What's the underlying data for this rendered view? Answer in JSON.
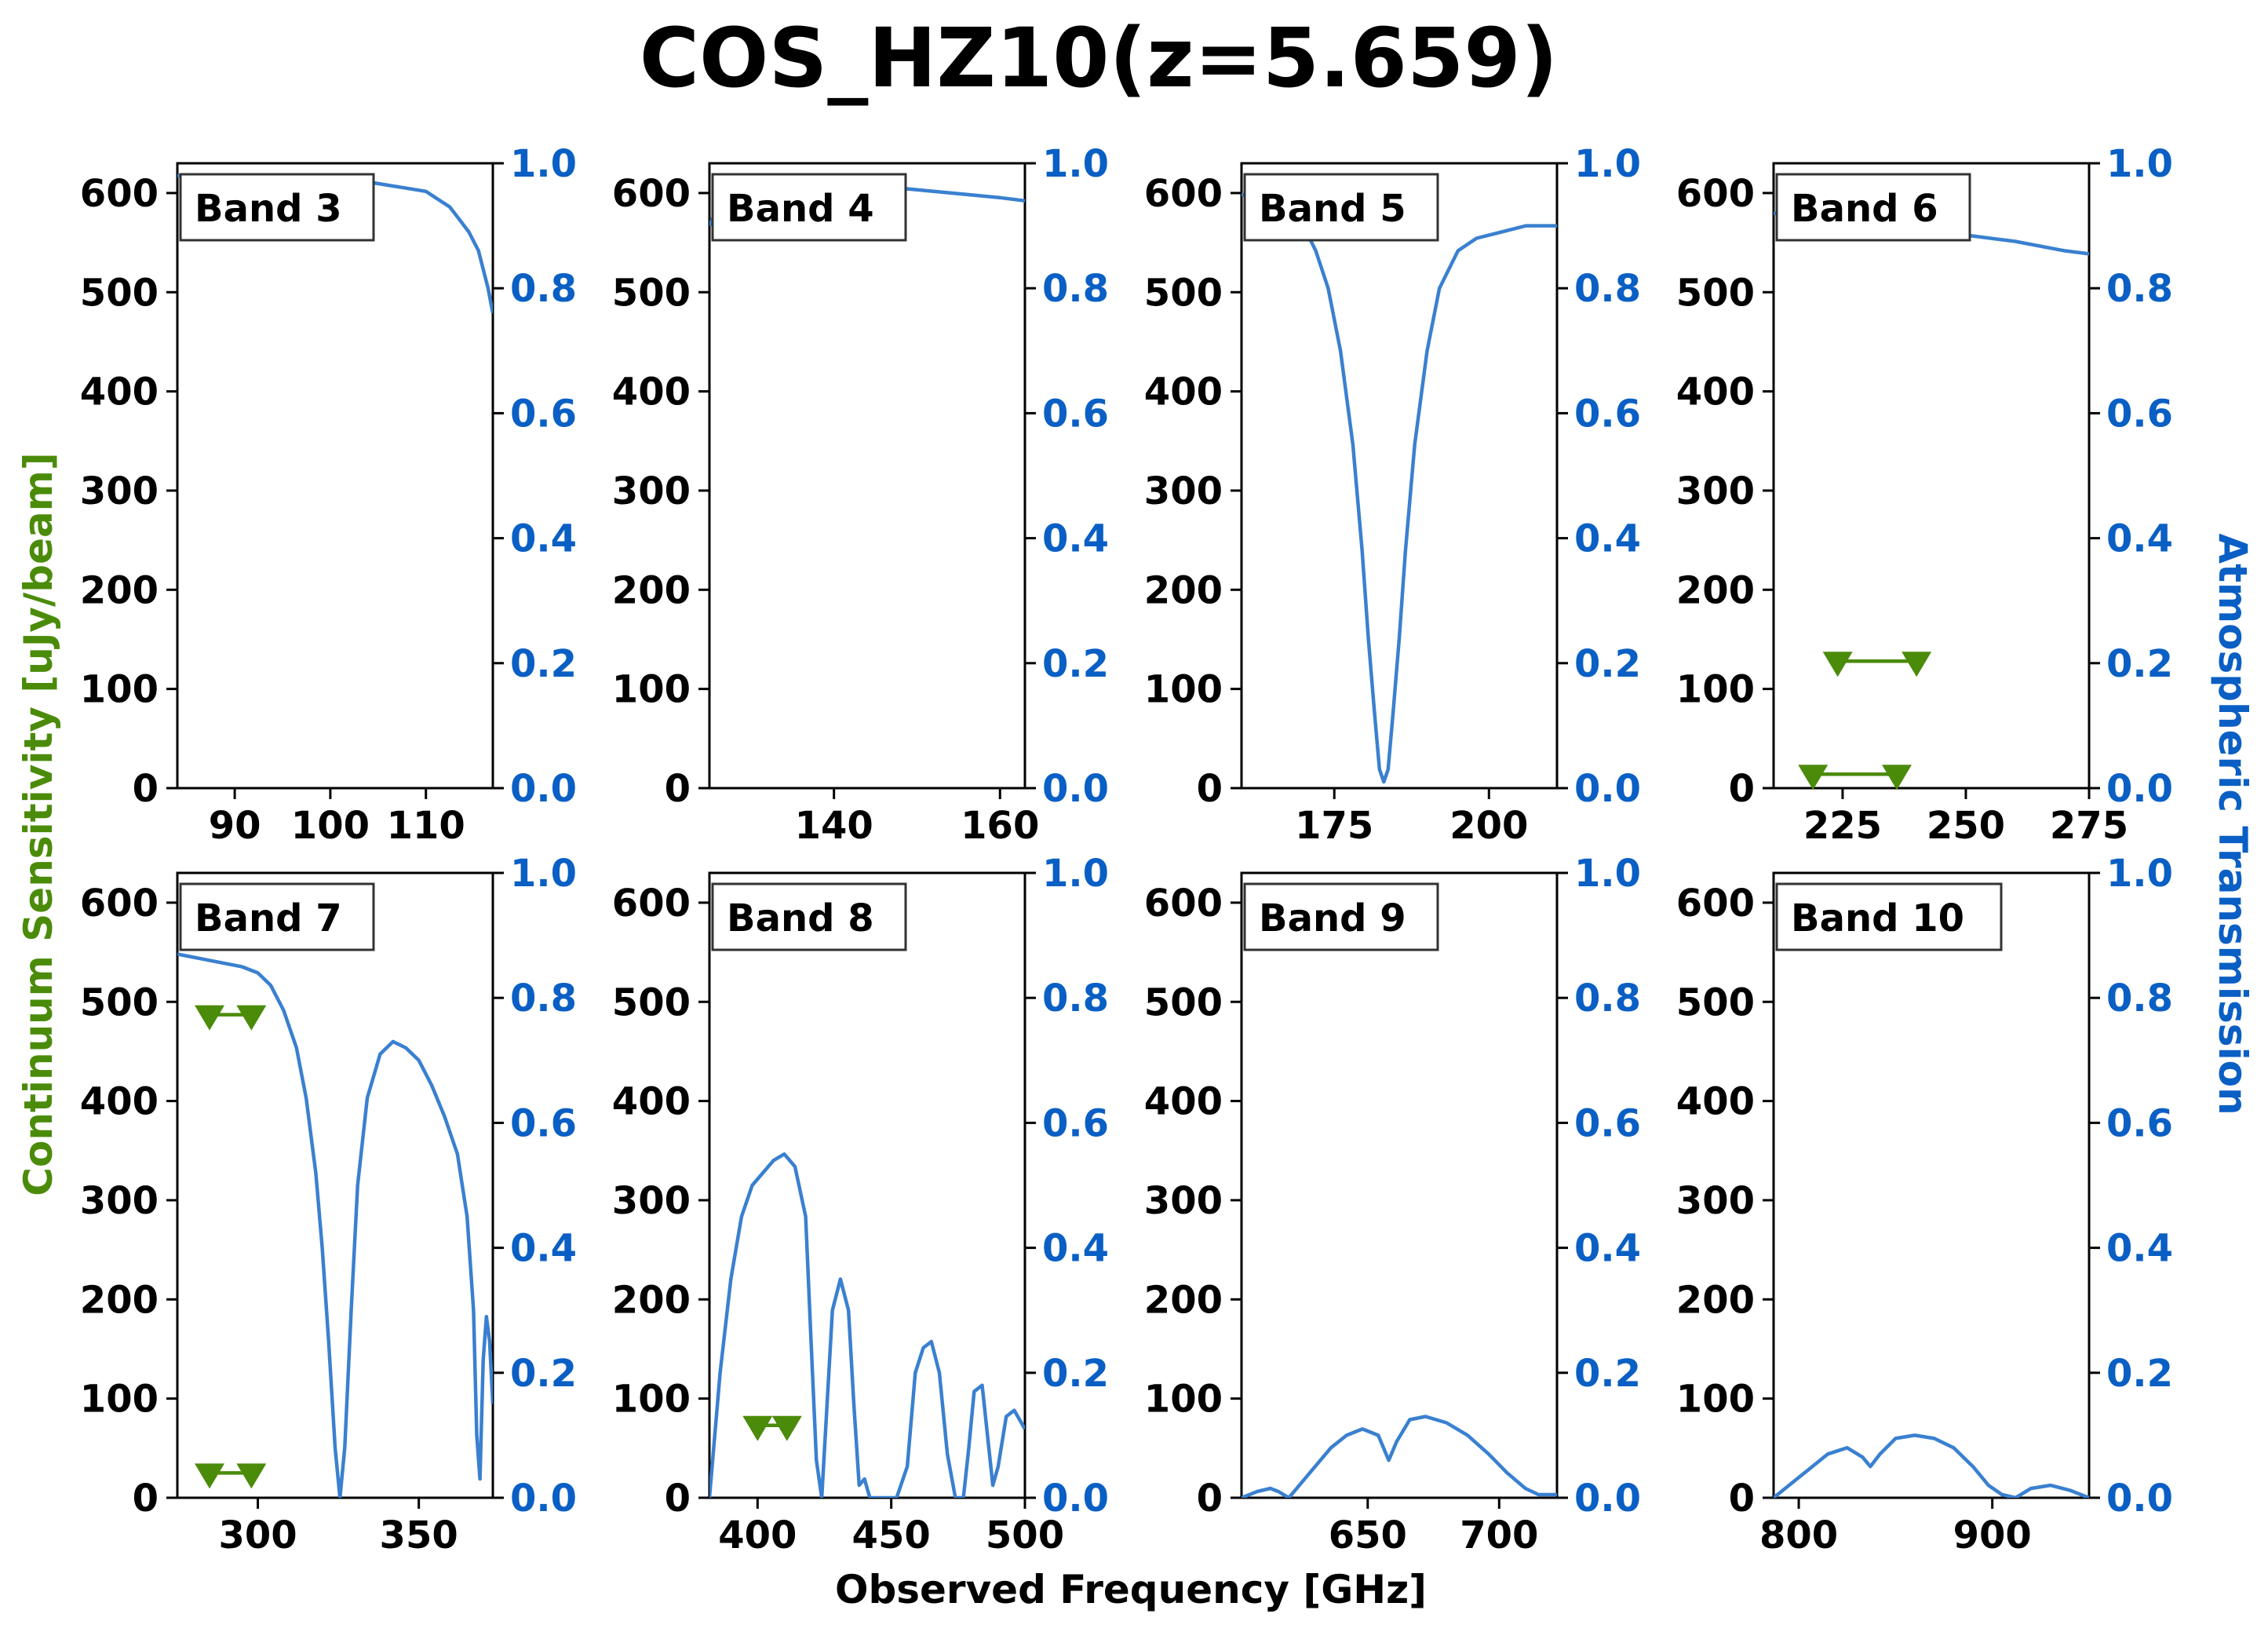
{
  "chart_data": {
    "type": "line",
    "title": "COS_HZ10(z=5.659)",
    "xlabel": "Observed Frequency [GHz]",
    "ylabel_left": "Continuum Sensitivity [uJy/beam]",
    "ylabel_right": "Atmospheric Transmission",
    "left_ylim": [
      0,
      630
    ],
    "left_yticks": [
      0,
      100,
      200,
      300,
      400,
      500,
      600
    ],
    "right_ylim": [
      0,
      1.0
    ],
    "right_yticks": [
      "0.0",
      "0.2",
      "0.4",
      "0.6",
      "0.8",
      "1.0"
    ],
    "colors": {
      "transmission": "#3a80d0",
      "sensitivity": "#4b8b0a",
      "right_axis": "#0a5fc4"
    },
    "panels": [
      {
        "label": "Band 3",
        "xlim": [
          84,
          117
        ],
        "xticks": [
          90,
          100,
          110
        ],
        "transmission": [
          [
            84,
            0.98
          ],
          [
            90,
            0.98
          ],
          [
            96,
            0.975
          ],
          [
            100,
            0.975
          ],
          [
            104,
            0.97
          ],
          [
            106,
            0.965
          ],
          [
            108,
            0.96
          ],
          [
            110,
            0.955
          ],
          [
            111.5,
            0.94
          ],
          [
            112.5,
            0.93
          ],
          [
            113.5,
            0.91
          ],
          [
            114.5,
            0.89
          ],
          [
            115.5,
            0.86
          ],
          [
            116.5,
            0.8
          ],
          [
            117,
            0.76
          ]
        ],
        "sensitivity_limits": []
      },
      {
        "label": "Band 4",
        "xlim": [
          125,
          163
        ],
        "xticks": [
          140,
          160
        ],
        "transmission": [
          [
            125,
            0.9
          ],
          [
            126,
            0.93
          ],
          [
            128,
            0.95
          ],
          [
            132,
            0.96
          ],
          [
            136,
            0.96
          ],
          [
            140,
            0.96
          ],
          [
            144,
            0.965
          ],
          [
            148,
            0.96
          ],
          [
            152,
            0.955
          ],
          [
            156,
            0.95
          ],
          [
            160,
            0.945
          ],
          [
            163,
            0.94
          ]
        ],
        "sensitivity_limits": []
      },
      {
        "label": "Band 5",
        "xlim": [
          160,
          211
        ],
        "xticks": [
          175,
          200
        ],
        "transmission": [
          [
            160,
            0.95
          ],
          [
            164,
            0.94
          ],
          [
            167,
            0.93
          ],
          [
            170,
            0.9
          ],
          [
            172,
            0.86
          ],
          [
            174,
            0.8
          ],
          [
            176,
            0.7
          ],
          [
            178,
            0.55
          ],
          [
            179.5,
            0.38
          ],
          [
            180.5,
            0.24
          ],
          [
            181.5,
            0.12
          ],
          [
            182.3,
            0.03
          ],
          [
            183,
            0.01
          ],
          [
            183.7,
            0.03
          ],
          [
            184.5,
            0.12
          ],
          [
            185.5,
            0.24
          ],
          [
            186.5,
            0.38
          ],
          [
            188,
            0.55
          ],
          [
            190,
            0.7
          ],
          [
            192,
            0.8
          ],
          [
            195,
            0.86
          ],
          [
            198,
            0.88
          ],
          [
            202,
            0.89
          ],
          [
            206,
            0.9
          ],
          [
            211,
            0.9
          ]
        ],
        "sensitivity_limits": []
      },
      {
        "label": "Band 6",
        "xlim": [
          211,
          275
        ],
        "xticks": [
          225,
          250,
          275
        ],
        "transmission": [
          [
            211,
            0.92
          ],
          [
            220,
            0.915
          ],
          [
            230,
            0.905
          ],
          [
            240,
            0.895
          ],
          [
            250,
            0.885
          ],
          [
            260,
            0.875
          ],
          [
            270,
            0.86
          ],
          [
            275,
            0.855
          ]
        ],
        "sensitivity_limits": [
          {
            "x": [
              224,
              240
            ],
            "y": 128
          },
          {
            "x": [
              219,
              236
            ],
            "y": 14
          }
        ]
      },
      {
        "label": "Band 7",
        "xlim": [
          275,
          373
        ],
        "xticks": [
          300,
          350
        ],
        "transmission": [
          [
            275,
            0.87
          ],
          [
            285,
            0.86
          ],
          [
            295,
            0.85
          ],
          [
            300,
            0.84
          ],
          [
            304,
            0.82
          ],
          [
            308,
            0.78
          ],
          [
            312,
            0.72
          ],
          [
            315,
            0.64
          ],
          [
            318,
            0.52
          ],
          [
            320,
            0.4
          ],
          [
            322,
            0.25
          ],
          [
            324,
            0.08
          ],
          [
            325.5,
            0.0
          ],
          [
            327,
            0.08
          ],
          [
            329,
            0.3
          ],
          [
            331,
            0.5
          ],
          [
            334,
            0.64
          ],
          [
            338,
            0.71
          ],
          [
            342,
            0.73
          ],
          [
            346,
            0.72
          ],
          [
            350,
            0.7
          ],
          [
            354,
            0.66
          ],
          [
            358,
            0.61
          ],
          [
            362,
            0.55
          ],
          [
            365,
            0.45
          ],
          [
            367,
            0.3
          ],
          [
            368,
            0.1
          ],
          [
            369,
            0.03
          ],
          [
            370,
            0.22
          ],
          [
            371,
            0.29
          ],
          [
            372,
            0.25
          ],
          [
            373,
            0.15
          ]
        ],
        "sensitivity_limits": [
          {
            "x": [
              285,
              298
            ],
            "y": 487
          },
          {
            "x": [
              285,
              298
            ],
            "y": 25
          }
        ]
      },
      {
        "label": "Band 8",
        "xlim": [
          382,
          500
        ],
        "xticks": [
          400,
          450,
          500
        ],
        "transmission": [
          [
            382,
            0.0
          ],
          [
            386,
            0.2
          ],
          [
            390,
            0.35
          ],
          [
            394,
            0.45
          ],
          [
            398,
            0.5
          ],
          [
            402,
            0.52
          ],
          [
            406,
            0.54
          ],
          [
            410,
            0.55
          ],
          [
            414,
            0.53
          ],
          [
            418,
            0.45
          ],
          [
            420,
            0.25
          ],
          [
            422,
            0.06
          ],
          [
            424,
            0.0
          ],
          [
            426,
            0.15
          ],
          [
            428,
            0.3
          ],
          [
            431,
            0.35
          ],
          [
            434,
            0.3
          ],
          [
            436,
            0.15
          ],
          [
            438,
            0.02
          ],
          [
            440,
            0.03
          ],
          [
            442,
            0.0
          ],
          [
            452,
            0.0
          ],
          [
            456,
            0.05
          ],
          [
            459,
            0.2
          ],
          [
            462,
            0.24
          ],
          [
            465,
            0.25
          ],
          [
            468,
            0.2
          ],
          [
            471,
            0.07
          ],
          [
            474,
            0.0
          ],
          [
            477,
            0.0
          ],
          [
            479,
            0.08
          ],
          [
            481,
            0.17
          ],
          [
            484,
            0.18
          ],
          [
            486,
            0.1
          ],
          [
            488,
            0.02
          ],
          [
            490,
            0.05
          ],
          [
            493,
            0.13
          ],
          [
            496,
            0.14
          ],
          [
            500,
            0.11
          ]
        ],
        "sensitivity_limits": [
          {
            "x": [
              400,
              411
            ],
            "y": 73
          }
        ]
      },
      {
        "label": "Band 9",
        "xlim": [
          602,
          722
        ],
        "xticks": [
          650,
          700
        ],
        "transmission": [
          [
            602,
            0.0
          ],
          [
            608,
            0.01
          ],
          [
            613,
            0.015
          ],
          [
            616,
            0.01
          ],
          [
            620,
            0.0
          ],
          [
            624,
            0.02
          ],
          [
            630,
            0.05
          ],
          [
            636,
            0.08
          ],
          [
            642,
            0.1
          ],
          [
            648,
            0.11
          ],
          [
            654,
            0.1
          ],
          [
            658,
            0.06
          ],
          [
            661,
            0.09
          ],
          [
            666,
            0.125
          ],
          [
            672,
            0.13
          ],
          [
            680,
            0.12
          ],
          [
            688,
            0.1
          ],
          [
            696,
            0.07
          ],
          [
            703,
            0.04
          ],
          [
            710,
            0.015
          ],
          [
            715,
            0.005
          ],
          [
            722,
            0.005
          ]
        ],
        "sensitivity_limits": []
      },
      {
        "label": "Band 10",
        "xlim": [
          787,
          950
        ],
        "xticks": [
          800,
          900
        ],
        "transmission": [
          [
            787,
            0.0
          ],
          [
            795,
            0.02
          ],
          [
            805,
            0.045
          ],
          [
            815,
            0.07
          ],
          [
            825,
            0.08
          ],
          [
            833,
            0.065
          ],
          [
            837,
            0.05
          ],
          [
            842,
            0.07
          ],
          [
            850,
            0.095
          ],
          [
            860,
            0.1
          ],
          [
            870,
            0.095
          ],
          [
            880,
            0.08
          ],
          [
            890,
            0.05
          ],
          [
            898,
            0.02
          ],
          [
            905,
            0.005
          ],
          [
            912,
            0.0
          ],
          [
            920,
            0.015
          ],
          [
            930,
            0.02
          ],
          [
            940,
            0.012
          ],
          [
            950,
            0.0
          ]
        ],
        "sensitivity_limits": []
      }
    ]
  }
}
